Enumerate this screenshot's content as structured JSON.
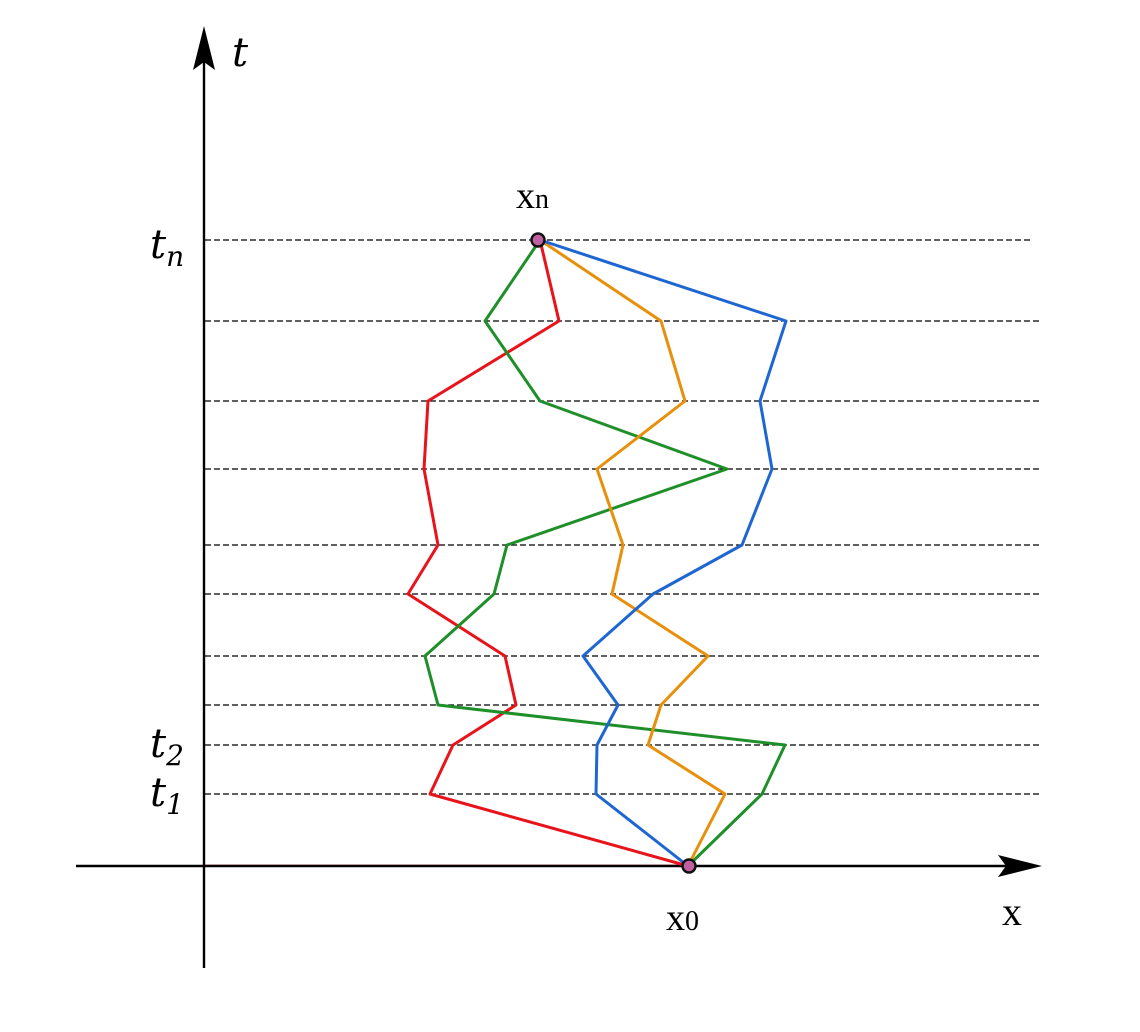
{
  "axes": {
    "vertical_label": "t",
    "horizontal_label": "x"
  },
  "time_labels": {
    "tn": {
      "base": "t",
      "sub": "n"
    },
    "t2": {
      "base": "t",
      "sub": "2"
    },
    "t1": {
      "base": "t",
      "sub": "1"
    }
  },
  "points": {
    "start": {
      "base": "x",
      "sub": "0"
    },
    "end": {
      "base": "x",
      "sub": "n"
    }
  },
  "colors": {
    "axis": "#000000",
    "grid": "#000000",
    "path_red": "#e8141b",
    "path_green": "#1f8f2a",
    "path_orange": "#e8900c",
    "path_blue": "#1e66d1",
    "point_fill": "#c060a0"
  }
}
